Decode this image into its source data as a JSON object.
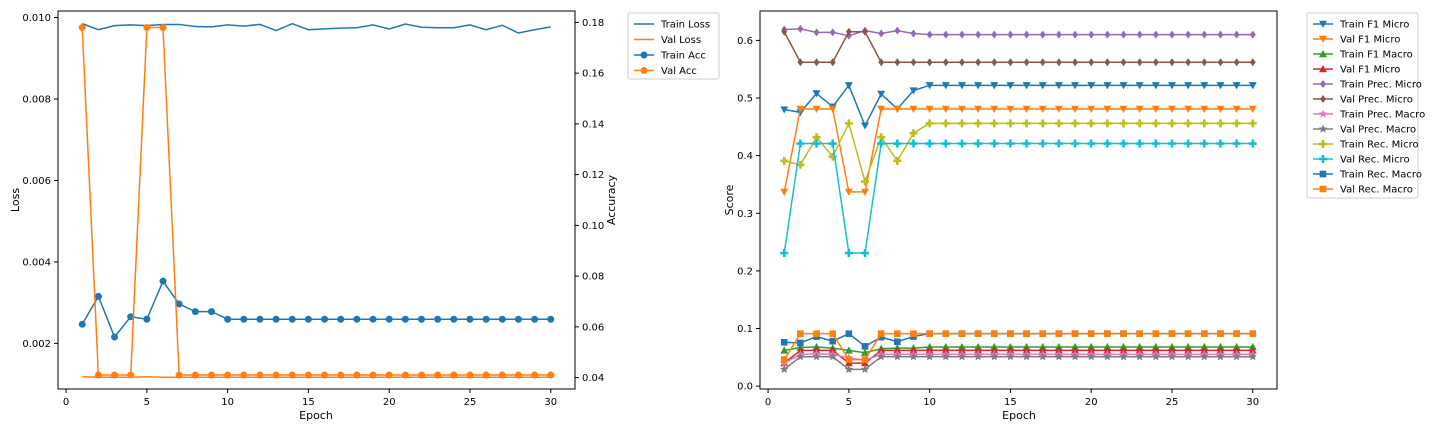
{
  "chart_data": [
    {
      "type": "line",
      "xlabel": "Epoch",
      "ylabel": "Loss",
      "ylabel2": "Accuracy",
      "xlim": [
        -0.5,
        31.5
      ],
      "ylim": [
        0.00088,
        0.01016
      ],
      "ylim2": [
        0.0355,
        0.1845
      ],
      "xticks": [
        0,
        5,
        10,
        15,
        20,
        25,
        30
      ],
      "yticks": [
        0.002,
        0.004,
        0.006,
        0.008,
        0.01
      ],
      "ytick_labels": [
        "0.002",
        "0.004",
        "0.006",
        "0.008",
        "0.010"
      ],
      "yticks2": [
        0.04,
        0.06,
        0.08,
        0.1,
        0.12,
        0.14,
        0.16,
        0.18
      ],
      "ytick_labels2": [
        "0.04",
        "0.06",
        "0.08",
        "0.10",
        "0.12",
        "0.14",
        "0.16",
        "0.18"
      ],
      "grid": false,
      "legend_placement": "outside-top-right",
      "x": [
        1,
        2,
        3,
        4,
        5,
        6,
        7,
        8,
        9,
        10,
        11,
        12,
        13,
        14,
        15,
        16,
        17,
        18,
        19,
        20,
        21,
        22,
        23,
        24,
        25,
        26,
        27,
        28,
        29,
        30
      ],
      "series": [
        {
          "name": "Train Loss",
          "axis": "left",
          "color": "#1f77b4",
          "marker": "none",
          "values": [
            0.00985,
            0.0097,
            0.0098,
            0.00982,
            0.0098,
            0.00983,
            0.00983,
            0.00978,
            0.00977,
            0.00982,
            0.00979,
            0.00983,
            0.00968,
            0.00985,
            0.0097,
            0.00972,
            0.00974,
            0.00975,
            0.00982,
            0.00972,
            0.00984,
            0.00976,
            0.00975,
            0.00975,
            0.00982,
            0.0097,
            0.00981,
            0.00962,
            0.0097,
            0.00977
          ]
        },
        {
          "name": "Val Loss",
          "axis": "left",
          "color": "#ff7f0e",
          "marker": "none",
          "values": [
            0.00118,
            0.00117,
            0.00117,
            0.00117,
            0.00118,
            0.00117,
            0.00117,
            0.00117,
            0.00117,
            0.00117,
            0.00117,
            0.00117,
            0.00117,
            0.00117,
            0.00117,
            0.00117,
            0.00117,
            0.00117,
            0.00117,
            0.00117,
            0.00117,
            0.00117,
            0.00117,
            0.00117,
            0.00117,
            0.00117,
            0.00117,
            0.00117,
            0.00117,
            0.00117
          ]
        },
        {
          "name": "Train Acc",
          "axis": "right",
          "color": "#1f77b4",
          "marker": "circle",
          "values": [
            0.061,
            0.072,
            0.056,
            0.064,
            0.063,
            0.078,
            0.069,
            0.066,
            0.066,
            0.063,
            0.063,
            0.063,
            0.063,
            0.063,
            0.063,
            0.063,
            0.063,
            0.063,
            0.063,
            0.063,
            0.063,
            0.063,
            0.063,
            0.063,
            0.063,
            0.063,
            0.063,
            0.063,
            0.063,
            0.063
          ]
        },
        {
          "name": "Val Acc",
          "axis": "right",
          "color": "#ff7f0e",
          "marker": "circle",
          "values": [
            0.178,
            0.041,
            0.041,
            0.041,
            0.178,
            0.178,
            0.041,
            0.041,
            0.041,
            0.041,
            0.041,
            0.041,
            0.041,
            0.041,
            0.041,
            0.041,
            0.041,
            0.041,
            0.041,
            0.041,
            0.041,
            0.041,
            0.041,
            0.041,
            0.041,
            0.041,
            0.041,
            0.041,
            0.041,
            0.041
          ]
        }
      ]
    },
    {
      "type": "line",
      "xlabel": "Epoch",
      "ylabel": "Score",
      "xlim": [
        -0.5,
        31.5
      ],
      "ylim": [
        -0.005,
        0.651
      ],
      "xticks": [
        0,
        5,
        10,
        15,
        20,
        25,
        30
      ],
      "yticks": [
        0.0,
        0.1,
        0.2,
        0.3,
        0.4,
        0.5,
        0.6
      ],
      "ytick_labels": [
        "0.0",
        "0.1",
        "0.2",
        "0.3",
        "0.4",
        "0.5",
        "0.6"
      ],
      "grid": false,
      "legend_placement": "outside-top-right",
      "x": [
        1,
        2,
        3,
        4,
        5,
        6,
        7,
        8,
        9,
        10,
        11,
        12,
        13,
        14,
        15,
        16,
        17,
        18,
        19,
        20,
        21,
        22,
        23,
        24,
        25,
        26,
        27,
        28,
        29,
        30
      ],
      "series": [
        {
          "name": "Train F1 Micro",
          "color": "#1f77b4",
          "marker": "triangle-down",
          "values": [
            0.48,
            0.475,
            0.508,
            0.485,
            0.522,
            0.452,
            0.507,
            0.481,
            0.513,
            0.522,
            0.522,
            0.522,
            0.522,
            0.522,
            0.522,
            0.522,
            0.522,
            0.522,
            0.522,
            0.522,
            0.522,
            0.522,
            0.522,
            0.522,
            0.522,
            0.522,
            0.522,
            0.522,
            0.522,
            0.522
          ]
        },
        {
          "name": "Val F1 Micro",
          "color": "#ff7f0e",
          "marker": "triangle-down",
          "values": [
            0.337,
            0.481,
            0.481,
            0.481,
            0.337,
            0.337,
            0.481,
            0.481,
            0.481,
            0.481,
            0.481,
            0.481,
            0.481,
            0.481,
            0.481,
            0.481,
            0.481,
            0.481,
            0.481,
            0.481,
            0.481,
            0.481,
            0.481,
            0.481,
            0.481,
            0.481,
            0.481,
            0.481,
            0.481,
            0.481
          ]
        },
        {
          "name": "Train F1 Macro",
          "color": "#2ca02c",
          "marker": "triangle-up",
          "values": [
            0.062,
            0.067,
            0.068,
            0.066,
            0.062,
            0.058,
            0.065,
            0.066,
            0.066,
            0.068,
            0.068,
            0.068,
            0.068,
            0.068,
            0.068,
            0.068,
            0.068,
            0.068,
            0.068,
            0.068,
            0.068,
            0.068,
            0.068,
            0.068,
            0.068,
            0.068,
            0.068,
            0.068,
            0.068,
            0.068
          ]
        },
        {
          "name": "Val F1 Micro",
          "color": "#d62728",
          "marker": "triangle-up",
          "values": [
            0.04,
            0.062,
            0.062,
            0.062,
            0.04,
            0.04,
            0.062,
            0.062,
            0.062,
            0.062,
            0.062,
            0.062,
            0.062,
            0.062,
            0.062,
            0.062,
            0.062,
            0.062,
            0.062,
            0.062,
            0.062,
            0.062,
            0.062,
            0.062,
            0.062,
            0.062,
            0.062,
            0.062,
            0.062,
            0.062
          ]
        },
        {
          "name": "Train Prec. Micro",
          "color": "#9467bd",
          "marker": "diamond",
          "values": [
            0.619,
            0.62,
            0.614,
            0.614,
            0.608,
            0.617,
            0.612,
            0.617,
            0.612,
            0.61,
            0.61,
            0.61,
            0.61,
            0.61,
            0.61,
            0.61,
            0.61,
            0.61,
            0.61,
            0.61,
            0.61,
            0.61,
            0.61,
            0.61,
            0.61,
            0.61,
            0.61,
            0.61,
            0.61,
            0.61
          ]
        },
        {
          "name": "Val Prec. Micro",
          "color": "#8c564b",
          "marker": "diamond",
          "values": [
            0.615,
            0.562,
            0.562,
            0.562,
            0.615,
            0.615,
            0.562,
            0.562,
            0.562,
            0.562,
            0.562,
            0.562,
            0.562,
            0.562,
            0.562,
            0.562,
            0.562,
            0.562,
            0.562,
            0.562,
            0.562,
            0.562,
            0.562,
            0.562,
            0.562,
            0.562,
            0.562,
            0.562,
            0.562,
            0.562
          ]
        },
        {
          "name": "Train Prec. Macro",
          "color": "#e377c2",
          "marker": "star",
          "values": [
            0.04,
            0.055,
            0.056,
            0.055,
            0.049,
            0.045,
            0.055,
            0.055,
            0.055,
            0.055,
            0.055,
            0.055,
            0.055,
            0.055,
            0.055,
            0.055,
            0.055,
            0.055,
            0.055,
            0.055,
            0.055,
            0.055,
            0.055,
            0.055,
            0.055,
            0.055,
            0.055,
            0.055,
            0.055,
            0.055
          ]
        },
        {
          "name": "Val Prec. Macro",
          "color": "#7f7f7f",
          "marker": "star",
          "values": [
            0.029,
            0.051,
            0.051,
            0.051,
            0.029,
            0.029,
            0.051,
            0.051,
            0.051,
            0.051,
            0.051,
            0.051,
            0.051,
            0.051,
            0.051,
            0.051,
            0.051,
            0.051,
            0.051,
            0.051,
            0.051,
            0.051,
            0.051,
            0.051,
            0.051,
            0.051,
            0.051,
            0.051,
            0.051,
            0.051
          ]
        },
        {
          "name": "Train Rec. Micro",
          "color": "#bcbd22",
          "marker": "plus",
          "values": [
            0.391,
            0.384,
            0.432,
            0.398,
            0.456,
            0.355,
            0.432,
            0.391,
            0.439,
            0.456,
            0.456,
            0.456,
            0.456,
            0.456,
            0.456,
            0.456,
            0.456,
            0.456,
            0.456,
            0.456,
            0.456,
            0.456,
            0.456,
            0.456,
            0.456,
            0.456,
            0.456,
            0.456,
            0.456,
            0.456
          ]
        },
        {
          "name": "Val Rec. Micro",
          "color": "#17becf",
          "marker": "plus",
          "values": [
            0.231,
            0.421,
            0.421,
            0.421,
            0.231,
            0.231,
            0.421,
            0.421,
            0.421,
            0.421,
            0.421,
            0.421,
            0.421,
            0.421,
            0.421,
            0.421,
            0.421,
            0.421,
            0.421,
            0.421,
            0.421,
            0.421,
            0.421,
            0.421,
            0.421,
            0.421,
            0.421,
            0.421,
            0.421,
            0.421
          ]
        },
        {
          "name": "Train Rec. Macro",
          "color": "#1f77b4",
          "marker": "square",
          "values": [
            0.076,
            0.075,
            0.086,
            0.078,
            0.091,
            0.069,
            0.085,
            0.077,
            0.086,
            0.091,
            0.091,
            0.091,
            0.091,
            0.091,
            0.091,
            0.091,
            0.091,
            0.091,
            0.091,
            0.091,
            0.091,
            0.091,
            0.091,
            0.091,
            0.091,
            0.091,
            0.091,
            0.091,
            0.091,
            0.091
          ]
        },
        {
          "name": "Val Rec. Macro",
          "color": "#ff7f0e",
          "marker": "square",
          "values": [
            0.046,
            0.091,
            0.091,
            0.091,
            0.046,
            0.046,
            0.091,
            0.091,
            0.091,
            0.091,
            0.091,
            0.091,
            0.091,
            0.091,
            0.091,
            0.091,
            0.091,
            0.091,
            0.091,
            0.091,
            0.091,
            0.091,
            0.091,
            0.091,
            0.091,
            0.091,
            0.091,
            0.091,
            0.091,
            0.091
          ]
        }
      ]
    }
  ]
}
